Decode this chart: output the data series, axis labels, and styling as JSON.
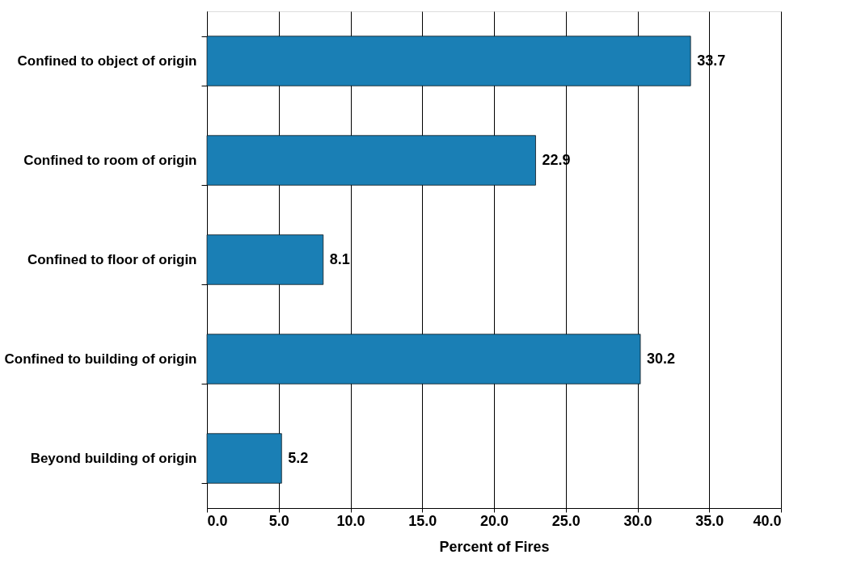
{
  "chart_data": {
    "type": "bar",
    "orientation": "horizontal",
    "xlabel": "Percent of Fires",
    "categories": [
      "Confined to object of origin",
      "Confined to room of origin",
      "Confined to floor of origin",
      "Confined to building of origin",
      "Beyond building of origin"
    ],
    "values": [
      33.7,
      22.9,
      8.1,
      30.2,
      5.2
    ],
    "color": "#1a7fb5",
    "data_labels": true,
    "xlim": [
      0,
      40
    ],
    "xticks": [
      {
        "value": 0,
        "label": "0.0"
      },
      {
        "value": 5,
        "label": "5.0"
      },
      {
        "value": 10,
        "label": "10.0"
      },
      {
        "value": 15,
        "label": "15.0"
      },
      {
        "value": 20,
        "label": "20.0"
      },
      {
        "value": 25,
        "label": "25.0"
      },
      {
        "value": 30,
        "label": "30.0"
      },
      {
        "value": 35,
        "label": "35.0"
      },
      {
        "value": 40,
        "label": "40.0"
      }
    ],
    "grid": "x"
  }
}
